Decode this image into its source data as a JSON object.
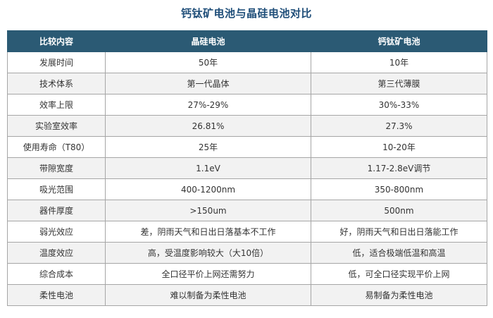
{
  "title": "钙钛矿电池与晶硅电池对比",
  "table": {
    "headers": [
      "比较内容",
      "晶硅电池",
      "钙钛矿电池"
    ],
    "rows": [
      [
        "发展时间",
        "50年",
        "10年"
      ],
      [
        "技术体系",
        "第一代晶体",
        "第三代薄膜"
      ],
      [
        "效率上限",
        "27%-29%",
        "30%-33%"
      ],
      [
        "实验室效率",
        "26.81%",
        "27.3%"
      ],
      [
        "使用寿命（T80）",
        "25年",
        "10-20年"
      ],
      [
        "带隙宽度",
        "1.1eV",
        "1.17-2.8eV调节"
      ],
      [
        "吸光范围",
        "400-1200nm",
        "350-800nm"
      ],
      [
        "器件厚度",
        ">150um",
        "500nm"
      ],
      [
        "弱光效应",
        "差，阴雨天气和日出日落基本不工作",
        "好，阴雨天气和日出日落能工作"
      ],
      [
        "温度效应",
        "高，受温度影响较大（大10倍）",
        "低，适合极端低温和高温"
      ],
      [
        "综合成本",
        "全口径平价上网还需努力",
        "低，可全口径实现平价上网"
      ],
      [
        "柔性电池",
        "难以制备为柔性电池",
        "易制备为柔性电池"
      ]
    ]
  },
  "colors": {
    "header_bg": "#2b5a74",
    "header_text": "#ffffff",
    "title_text": "#1f4e79",
    "row_alt_bg": "#f2f2f2",
    "border": "#a6a6a6"
  }
}
